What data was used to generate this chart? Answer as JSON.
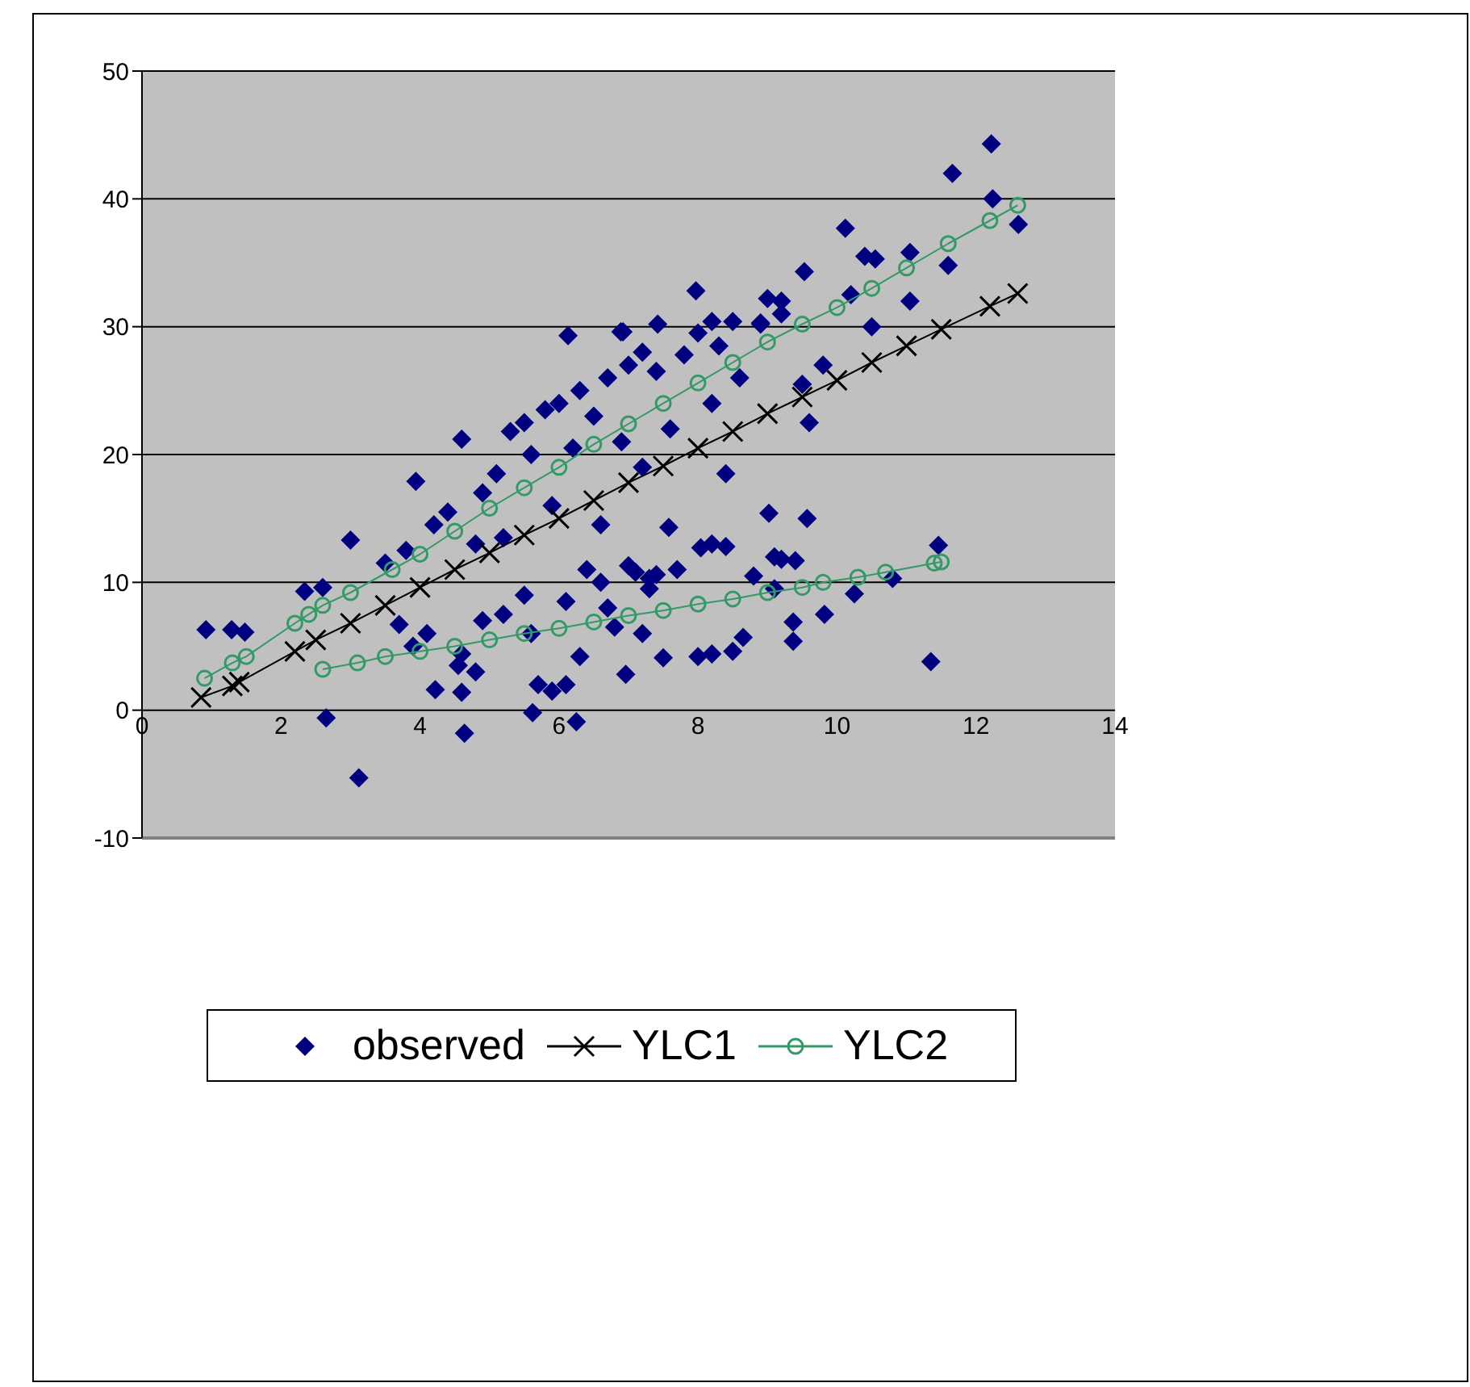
{
  "chart_data": {
    "type": "scatter",
    "xlim": [
      0,
      14
    ],
    "xticks": [
      0,
      2,
      4,
      6,
      8,
      10,
      12,
      14
    ],
    "ylim": [
      -10,
      50
    ],
    "yticks": [
      -10,
      0,
      10,
      20,
      30,
      40,
      50
    ],
    "grid": "y",
    "legend": "bottom",
    "series": [
      {
        "name": "observed",
        "marker": "diamond",
        "color": "#000080",
        "x": [
          0.92,
          1.29,
          1.48,
          2.65,
          3.12,
          3.0,
          3.94,
          4.64,
          5.62,
          6.25,
          4.22,
          4.6,
          4.55,
          2.34,
          2.6,
          6.13,
          6.89,
          12.22,
          11.66,
          12.24,
          12.61,
          10.12,
          11.6,
          7.97,
          9.53,
          11.05,
          10.4,
          10.55,
          11.05,
          9.0,
          9.2,
          7.42,
          6.92,
          8.2,
          8.5,
          8.9,
          11.46,
          11.35,
          9.02,
          9.57,
          7.58,
          8.04,
          8.2,
          8.4,
          10.25,
          9.82,
          9.37,
          9.37,
          7.5,
          8.0,
          8.2,
          8.5,
          8.65,
          6.96,
          7.0,
          7.1,
          7.3,
          7.4,
          9.1,
          9.2,
          4.6,
          5.3,
          5.5,
          5.8,
          6.0,
          6.3,
          6.5,
          6.7,
          7.0,
          7.2,
          7.4,
          7.8,
          8.0,
          8.3,
          8.6,
          8.9,
          9.2,
          9.5,
          9.6,
          9.8,
          10.2,
          10.5,
          6.9,
          7.6,
          8.2,
          5.1,
          4.9,
          4.4,
          4.2,
          3.8,
          3.5,
          5.6,
          6.2,
          8.4,
          7.2,
          6.6,
          5.2,
          4.8,
          5.9,
          6.4,
          6.6,
          5.5,
          5.2,
          4.9,
          5.6,
          6.1,
          6.7,
          6.8,
          7.3,
          6.3,
          5.7,
          5.9,
          6.1,
          4.8,
          4.6,
          3.7,
          3.9,
          4.1,
          7.7,
          8.8,
          9.4,
          7.2,
          9.1,
          10.8
        ],
        "values": [
          6.3,
          6.3,
          6.1,
          -0.6,
          -5.3,
          13.3,
          17.9,
          -1.8,
          -0.2,
          -0.9,
          1.6,
          1.4,
          3.5,
          9.3,
          9.6,
          29.3,
          29.6,
          44.3,
          42.0,
          40.0,
          38.0,
          37.7,
          34.8,
          32.8,
          34.3,
          32.0,
          35.5,
          35.3,
          35.8,
          32.2,
          32.0,
          30.2,
          29.6,
          30.4,
          30.4,
          30.3,
          12.9,
          3.8,
          15.4,
          15.0,
          14.3,
          12.7,
          13.0,
          12.8,
          9.1,
          7.5,
          5.4,
          6.9,
          4.1,
          4.2,
          4.4,
          4.6,
          5.7,
          2.8,
          11.3,
          10.8,
          10.3,
          10.6,
          12.0,
          11.8,
          21.2,
          21.8,
          22.5,
          23.5,
          24.0,
          25.0,
          23.0,
          26.0,
          27.0,
          28.0,
          26.5,
          27.8,
          29.5,
          28.5,
          26.0,
          30.2,
          31.0,
          25.5,
          22.5,
          27.0,
          32.5,
          30.0,
          21.0,
          22.0,
          24.0,
          18.5,
          17.0,
          15.5,
          14.5,
          12.5,
          11.5,
          20.0,
          20.5,
          18.5,
          19.0,
          14.5,
          13.5,
          13.0,
          16.0,
          11.0,
          10.0,
          9.0,
          7.5,
          7.0,
          6.0,
          8.5,
          8.0,
          6.5,
          9.5,
          4.2,
          2.0,
          1.5,
          2.0,
          3.0,
          4.4,
          6.7,
          5.0,
          6.0,
          11.0,
          10.5,
          11.7,
          6.0,
          9.5,
          10.3
        ]
      },
      {
        "name": "YLC1",
        "type": "line",
        "marker": "cross",
        "color": "#000000",
        "x": [
          0.85,
          1.3,
          1.4,
          2.2,
          2.5,
          3.0,
          3.5,
          4.0,
          4.5,
          5.0,
          5.5,
          6.0,
          6.5,
          7.0,
          7.5,
          8.0,
          8.5,
          9.0,
          9.5,
          10.0,
          10.5,
          11.0,
          11.5,
          12.2,
          12.6
        ],
        "values": [
          1.0,
          1.9,
          2.2,
          4.6,
          5.5,
          6.8,
          8.2,
          9.6,
          11.0,
          12.3,
          13.7,
          15.0,
          16.4,
          17.8,
          19.1,
          20.5,
          21.8,
          23.2,
          24.5,
          25.8,
          27.2,
          28.5,
          29.8,
          31.6,
          32.6
        ]
      },
      {
        "name": "YLC2",
        "type": "line",
        "marker": "circle",
        "color": "#339966",
        "x": [
          0.9,
          1.3,
          1.5,
          2.2,
          2.4,
          2.6,
          3.0,
          3.6,
          4.0,
          4.5,
          5.0,
          5.5,
          6.0,
          6.5,
          7.0,
          7.5,
          8.0,
          8.5,
          9.0,
          9.5,
          10.0,
          10.5,
          11.0,
          11.6,
          12.2,
          12.6,
          null,
          2.6,
          3.1,
          3.5,
          4.0,
          4.5,
          5.0,
          5.5,
          6.0,
          6.5,
          7.0,
          7.5,
          8.0,
          8.5,
          9.0,
          9.5,
          9.8,
          10.3,
          10.7,
          11.4,
          11.5
        ],
        "values": [
          2.5,
          3.7,
          4.2,
          6.8,
          7.5,
          8.2,
          9.2,
          11.0,
          12.2,
          14.0,
          15.8,
          17.4,
          19.0,
          20.8,
          22.4,
          24.0,
          25.6,
          27.2,
          28.8,
          30.2,
          31.5,
          33.0,
          34.6,
          36.5,
          38.3,
          39.5,
          null,
          3.2,
          3.7,
          4.2,
          4.6,
          5.0,
          5.5,
          6.0,
          6.4,
          6.9,
          7.4,
          7.8,
          8.3,
          8.7,
          9.2,
          9.6,
          10.0,
          10.4,
          10.8,
          11.5,
          11.6
        ]
      }
    ]
  }
}
